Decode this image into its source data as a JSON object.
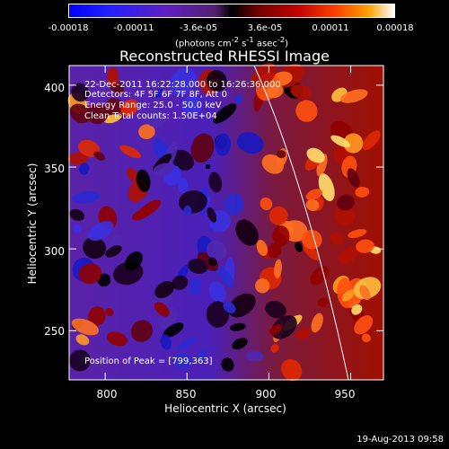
{
  "colorbar": {
    "ticks": [
      "-0.00018",
      "-0.00011",
      "-3.6e-05",
      "3.6e-05",
      "0.00011",
      "0.00018"
    ],
    "tick_values": [
      -0.00018,
      -0.00011,
      -3.6e-05,
      3.6e-05,
      0.00011,
      0.00018
    ],
    "unit_prefix": "(photons cm",
    "unit_e1": "-2",
    "unit_mid": " s",
    "unit_e2": "-1",
    "unit_mid2": " asec",
    "unit_e3": "-2",
    "unit_suffix": ")"
  },
  "title": "Reconstructed RHESSI Image",
  "annotations": {
    "time": "22-Dec-2011 16:22:28.000 to 16:26:36.000",
    "detectors": "Detectors: 4F 5F 6F 7F 8F, Att 0",
    "energy": "Energy Range: 25.0 - 50.0 keV",
    "method": "Clean    Total counts: 1.50E+04",
    "peak": "Position of Peak = [799,363]"
  },
  "axes": {
    "xlabel": "Heliocentric X (arcsec)",
    "ylabel": "Heliocentric Y (arcsec)",
    "xticks": [
      "800",
      "850",
      "900",
      "950"
    ],
    "xtick_values": [
      800,
      850,
      900,
      950
    ],
    "yticks": [
      "400",
      "350",
      "300",
      "250"
    ],
    "ytick_values": [
      400,
      350,
      300,
      250
    ],
    "xlim": [
      778,
      970
    ],
    "ylim": [
      220,
      412
    ]
  },
  "footer": "19-Aug-2013 09:58",
  "colors": {
    "axes": "#ffffff",
    "limb": "#ffffff",
    "peak_marker": "#000000"
  }
}
